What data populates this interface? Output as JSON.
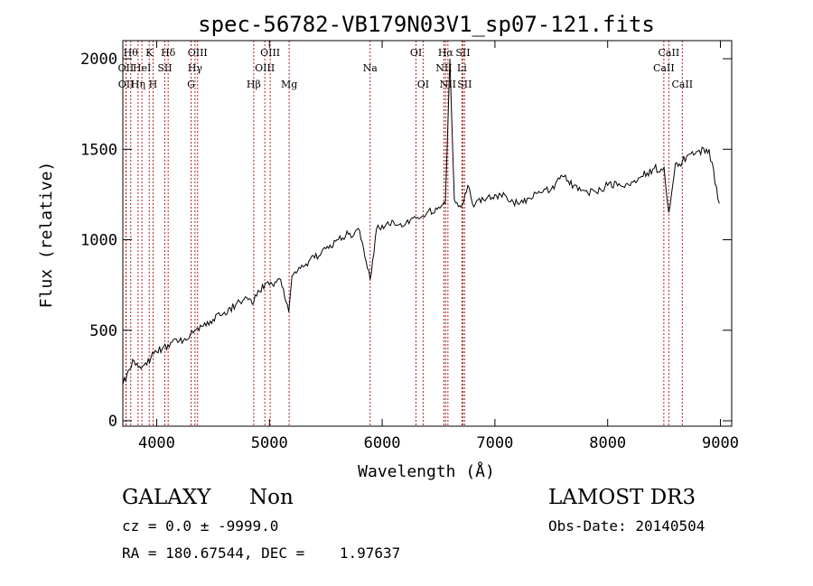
{
  "chart_data": {
    "type": "line",
    "title": "spec-56782-VB179N03V1_sp07-121.fits",
    "xlabel": "Wavelength (Å)",
    "ylabel": "Flux (relative)",
    "xlim": [
      3700,
      9100
    ],
    "ylim": [
      -30,
      2100
    ],
    "x_ticks": [
      4000,
      5000,
      6000,
      7000,
      8000,
      9000
    ],
    "x_tick_labels": [
      "4000",
      "5000",
      "6000",
      "7000",
      "8000",
      "9000"
    ],
    "y_ticks": [
      0,
      500,
      1000,
      1500,
      2000
    ],
    "y_tick_labels": [
      "0",
      "500",
      "1000",
      "1500",
      "2000"
    ],
    "line_color": "#000000",
    "marker_color": "#b22222",
    "spectrum": {
      "x": [
        3700,
        3750,
        3800,
        3850,
        3900,
        3950,
        4000,
        4050,
        4100,
        4150,
        4200,
        4300,
        4400,
        4500,
        4600,
        4700,
        4800,
        4860,
        4900,
        5000,
        5100,
        5172,
        5200,
        5300,
        5400,
        5500,
        5600,
        5700,
        5800,
        5893,
        5950,
        6000,
        6100,
        6200,
        6300,
        6400,
        6500,
        6560,
        6600,
        6640,
        6700,
        6760,
        6800,
        6900,
        7000,
        7100,
        7200,
        7300,
        7400,
        7500,
        7600,
        7700,
        7800,
        7900,
        8000,
        8100,
        8200,
        8300,
        8400,
        8500,
        8542,
        8600,
        8662,
        8700,
        8800,
        8900,
        8990
      ],
      "y": [
        200,
        280,
        330,
        300,
        320,
        350,
        380,
        400,
        420,
        450,
        440,
        480,
        520,
        560,
        600,
        640,
        680,
        650,
        720,
        750,
        780,
        600,
        800,
        850,
        900,
        950,
        1000,
        1030,
        1050,
        780,
        1060,
        1080,
        1100,
        1080,
        1120,
        1150,
        1180,
        1200,
        2000,
        1220,
        1180,
        1300,
        1200,
        1220,
        1250,
        1240,
        1200,
        1230,
        1260,
        1280,
        1350,
        1300,
        1270,
        1260,
        1300,
        1310,
        1300,
        1350,
        1390,
        1400,
        1150,
        1420,
        1430,
        1460,
        1490,
        1500,
        1200
      ]
    },
    "lines": [
      {
        "wl": 3727,
        "label": "OII",
        "row": 2
      },
      {
        "wl": 3729,
        "label": "OII",
        "row": 3
      },
      {
        "wl": 3770,
        "label": "Hθ",
        "row": 1
      },
      {
        "wl": 3835,
        "label": "Hη",
        "row": 3
      },
      {
        "wl": 3869,
        "label": "HeI",
        "row": 2
      },
      {
        "wl": 3934,
        "label": "K",
        "row": 1
      },
      {
        "wl": 3968,
        "label": "H",
        "row": 3
      },
      {
        "wl": 4072,
        "label": "SII",
        "row": 2
      },
      {
        "wl": 4102,
        "label": "Hδ",
        "row": 1
      },
      {
        "wl": 4305,
        "label": "G",
        "row": 3
      },
      {
        "wl": 4340,
        "label": "Hγ",
        "row": 2
      },
      {
        "wl": 4363,
        "label": "OIII",
        "row": 1
      },
      {
        "wl": 4861,
        "label": "Hβ",
        "row": 3
      },
      {
        "wl": 4959,
        "label": "OIII",
        "row": 2
      },
      {
        "wl": 5007,
        "label": "OIII",
        "row": 1
      },
      {
        "wl": 5175,
        "label": "Mg",
        "row": 3
      },
      {
        "wl": 5893,
        "label": "Na",
        "row": 2
      },
      {
        "wl": 6300,
        "label": "OI",
        "row": 1
      },
      {
        "wl": 6363,
        "label": "OI",
        "row": 3
      },
      {
        "wl": 6548,
        "label": "NII",
        "row": 2
      },
      {
        "wl": 6563,
        "label": "Hα",
        "row": 1
      },
      {
        "wl": 6583,
        "label": "NII",
        "row": 3
      },
      {
        "wl": 6707,
        "label": "Li",
        "row": 2
      },
      {
        "wl": 6716,
        "label": "SII",
        "row": 1
      },
      {
        "wl": 6731,
        "label": "SII",
        "row": 3
      },
      {
        "wl": 8498,
        "label": "CaII",
        "row": 2
      },
      {
        "wl": 8542,
        "label": "CaII",
        "row": 1
      },
      {
        "wl": 8662,
        "label": "CaII",
        "row": 3
      }
    ]
  },
  "footer": {
    "class_label": "GALAXY",
    "subclass_label": "Non",
    "survey": "LAMOST DR3",
    "redshift": "cz = 0.0 ± -9999.0",
    "obs_date": "Obs-Date: 20140504",
    "coords": "RA = 180.67544, DEC =    1.97637"
  }
}
